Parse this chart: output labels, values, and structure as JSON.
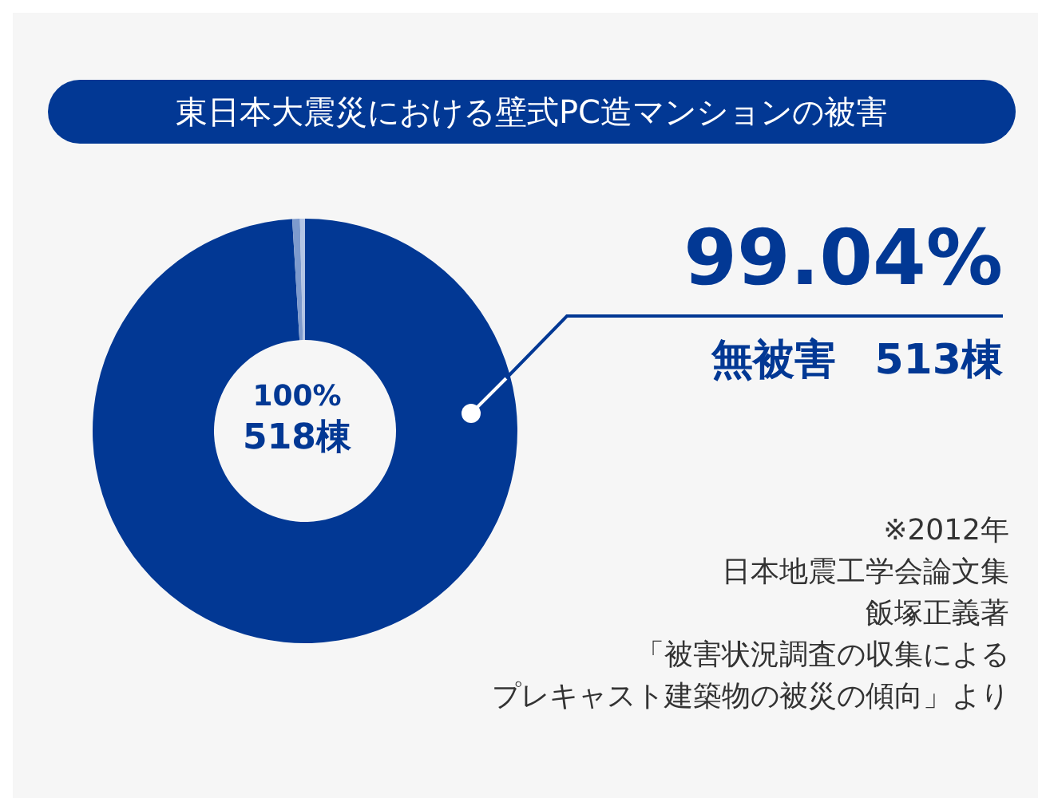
{
  "chart_data": {
    "type": "donut",
    "title": "東日本大震災における壁式PC造マンションの被害",
    "categories": [
      "無被害",
      null,
      null
    ],
    "values": [
      99.04,
      0.58,
      0.38
    ],
    "colors": [
      "#023894",
      "#7d9acd",
      "#b3c5e5"
    ],
    "value_labels": [
      "99.04%",
      null,
      null
    ],
    "annotations": [
      "513棟",
      "100%",
      "518棟",
      "※2012年",
      "日本地震工学会論文集",
      "飯塚正義著",
      "「被害状況調査の収集による",
      "プレキャスト建築物の被災の傾向」より"
    ]
  }
}
